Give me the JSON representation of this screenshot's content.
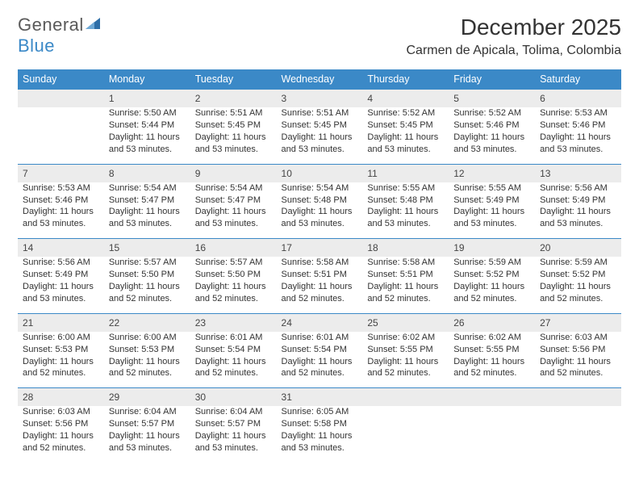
{
  "logo": {
    "text1": "General",
    "text2": "Blue",
    "shape_color": "#2e6fa8"
  },
  "title": "December 2025",
  "location": "Carmen de Apicala, Tolima, Colombia",
  "colors": {
    "header_bg": "#3b89c7",
    "header_fg": "#ffffff",
    "daynum_bg": "#ececec",
    "row_border": "#3b89c7",
    "text": "#333333",
    "background": "#ffffff"
  },
  "typography": {
    "title_fontsize": 28,
    "location_fontsize": 16,
    "header_fontsize": 12.5,
    "cell_fontsize": 11
  },
  "layout": {
    "columns": 7,
    "rows": 5,
    "first_weekday": "Sunday"
  },
  "weekdays": [
    "Sunday",
    "Monday",
    "Tuesday",
    "Wednesday",
    "Thursday",
    "Friday",
    "Saturday"
  ],
  "weeks": [
    [
      null,
      {
        "day": "1",
        "sunrise": "Sunrise: 5:50 AM",
        "sunset": "Sunset: 5:44 PM",
        "day1": "Daylight: 11 hours",
        "day2": "and 53 minutes."
      },
      {
        "day": "2",
        "sunrise": "Sunrise: 5:51 AM",
        "sunset": "Sunset: 5:45 PM",
        "day1": "Daylight: 11 hours",
        "day2": "and 53 minutes."
      },
      {
        "day": "3",
        "sunrise": "Sunrise: 5:51 AM",
        "sunset": "Sunset: 5:45 PM",
        "day1": "Daylight: 11 hours",
        "day2": "and 53 minutes."
      },
      {
        "day": "4",
        "sunrise": "Sunrise: 5:52 AM",
        "sunset": "Sunset: 5:45 PM",
        "day1": "Daylight: 11 hours",
        "day2": "and 53 minutes."
      },
      {
        "day": "5",
        "sunrise": "Sunrise: 5:52 AM",
        "sunset": "Sunset: 5:46 PM",
        "day1": "Daylight: 11 hours",
        "day2": "and 53 minutes."
      },
      {
        "day": "6",
        "sunrise": "Sunrise: 5:53 AM",
        "sunset": "Sunset: 5:46 PM",
        "day1": "Daylight: 11 hours",
        "day2": "and 53 minutes."
      }
    ],
    [
      {
        "day": "7",
        "sunrise": "Sunrise: 5:53 AM",
        "sunset": "Sunset: 5:46 PM",
        "day1": "Daylight: 11 hours",
        "day2": "and 53 minutes."
      },
      {
        "day": "8",
        "sunrise": "Sunrise: 5:54 AM",
        "sunset": "Sunset: 5:47 PM",
        "day1": "Daylight: 11 hours",
        "day2": "and 53 minutes."
      },
      {
        "day": "9",
        "sunrise": "Sunrise: 5:54 AM",
        "sunset": "Sunset: 5:47 PM",
        "day1": "Daylight: 11 hours",
        "day2": "and 53 minutes."
      },
      {
        "day": "10",
        "sunrise": "Sunrise: 5:54 AM",
        "sunset": "Sunset: 5:48 PM",
        "day1": "Daylight: 11 hours",
        "day2": "and 53 minutes."
      },
      {
        "day": "11",
        "sunrise": "Sunrise: 5:55 AM",
        "sunset": "Sunset: 5:48 PM",
        "day1": "Daylight: 11 hours",
        "day2": "and 53 minutes."
      },
      {
        "day": "12",
        "sunrise": "Sunrise: 5:55 AM",
        "sunset": "Sunset: 5:49 PM",
        "day1": "Daylight: 11 hours",
        "day2": "and 53 minutes."
      },
      {
        "day": "13",
        "sunrise": "Sunrise: 5:56 AM",
        "sunset": "Sunset: 5:49 PM",
        "day1": "Daylight: 11 hours",
        "day2": "and 53 minutes."
      }
    ],
    [
      {
        "day": "14",
        "sunrise": "Sunrise: 5:56 AM",
        "sunset": "Sunset: 5:49 PM",
        "day1": "Daylight: 11 hours",
        "day2": "and 53 minutes."
      },
      {
        "day": "15",
        "sunrise": "Sunrise: 5:57 AM",
        "sunset": "Sunset: 5:50 PM",
        "day1": "Daylight: 11 hours",
        "day2": "and 52 minutes."
      },
      {
        "day": "16",
        "sunrise": "Sunrise: 5:57 AM",
        "sunset": "Sunset: 5:50 PM",
        "day1": "Daylight: 11 hours",
        "day2": "and 52 minutes."
      },
      {
        "day": "17",
        "sunrise": "Sunrise: 5:58 AM",
        "sunset": "Sunset: 5:51 PM",
        "day1": "Daylight: 11 hours",
        "day2": "and 52 minutes."
      },
      {
        "day": "18",
        "sunrise": "Sunrise: 5:58 AM",
        "sunset": "Sunset: 5:51 PM",
        "day1": "Daylight: 11 hours",
        "day2": "and 52 minutes."
      },
      {
        "day": "19",
        "sunrise": "Sunrise: 5:59 AM",
        "sunset": "Sunset: 5:52 PM",
        "day1": "Daylight: 11 hours",
        "day2": "and 52 minutes."
      },
      {
        "day": "20",
        "sunrise": "Sunrise: 5:59 AM",
        "sunset": "Sunset: 5:52 PM",
        "day1": "Daylight: 11 hours",
        "day2": "and 52 minutes."
      }
    ],
    [
      {
        "day": "21",
        "sunrise": "Sunrise: 6:00 AM",
        "sunset": "Sunset: 5:53 PM",
        "day1": "Daylight: 11 hours",
        "day2": "and 52 minutes."
      },
      {
        "day": "22",
        "sunrise": "Sunrise: 6:00 AM",
        "sunset": "Sunset: 5:53 PM",
        "day1": "Daylight: 11 hours",
        "day2": "and 52 minutes."
      },
      {
        "day": "23",
        "sunrise": "Sunrise: 6:01 AM",
        "sunset": "Sunset: 5:54 PM",
        "day1": "Daylight: 11 hours",
        "day2": "and 52 minutes."
      },
      {
        "day": "24",
        "sunrise": "Sunrise: 6:01 AM",
        "sunset": "Sunset: 5:54 PM",
        "day1": "Daylight: 11 hours",
        "day2": "and 52 minutes."
      },
      {
        "day": "25",
        "sunrise": "Sunrise: 6:02 AM",
        "sunset": "Sunset: 5:55 PM",
        "day1": "Daylight: 11 hours",
        "day2": "and 52 minutes."
      },
      {
        "day": "26",
        "sunrise": "Sunrise: 6:02 AM",
        "sunset": "Sunset: 5:55 PM",
        "day1": "Daylight: 11 hours",
        "day2": "and 52 minutes."
      },
      {
        "day": "27",
        "sunrise": "Sunrise: 6:03 AM",
        "sunset": "Sunset: 5:56 PM",
        "day1": "Daylight: 11 hours",
        "day2": "and 52 minutes."
      }
    ],
    [
      {
        "day": "28",
        "sunrise": "Sunrise: 6:03 AM",
        "sunset": "Sunset: 5:56 PM",
        "day1": "Daylight: 11 hours",
        "day2": "and 52 minutes."
      },
      {
        "day": "29",
        "sunrise": "Sunrise: 6:04 AM",
        "sunset": "Sunset: 5:57 PM",
        "day1": "Daylight: 11 hours",
        "day2": "and 53 minutes."
      },
      {
        "day": "30",
        "sunrise": "Sunrise: 6:04 AM",
        "sunset": "Sunset: 5:57 PM",
        "day1": "Daylight: 11 hours",
        "day2": "and 53 minutes."
      },
      {
        "day": "31",
        "sunrise": "Sunrise: 6:05 AM",
        "sunset": "Sunset: 5:58 PM",
        "day1": "Daylight: 11 hours",
        "day2": "and 53 minutes."
      },
      null,
      null,
      null
    ]
  ]
}
